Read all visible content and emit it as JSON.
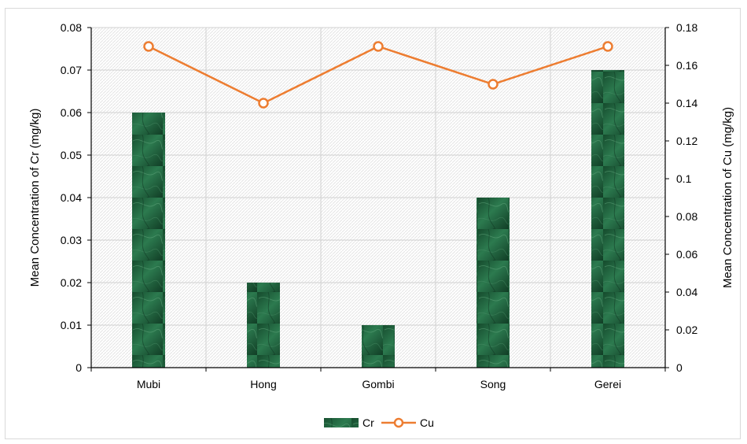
{
  "chart_data": {
    "type": "bar",
    "title": "",
    "categories": [
      "Mubi",
      "Hong",
      "Gombi",
      "Song",
      "Gerei"
    ],
    "series": [
      {
        "name": "Cr",
        "kind": "bar",
        "axis": "left",
        "color": "#1f5a3a",
        "values": [
          0.06,
          0.02,
          0.01,
          0.04,
          0.07
        ]
      },
      {
        "name": "Cu",
        "kind": "line",
        "axis": "right",
        "color": "#ed7d31",
        "values": [
          0.17,
          0.14,
          0.17,
          0.15,
          0.17
        ]
      }
    ],
    "y_left": {
      "label": "Mean Concentration of Cr (mg/kg)",
      "range": [
        0,
        0.08
      ],
      "ticks": [
        "0",
        "0.01",
        "0.02",
        "0.03",
        "0.04",
        "0.05",
        "0.06",
        "0.07",
        "0.08"
      ]
    },
    "y_right": {
      "label": "Mean Concentration of Cu (mg/kg)",
      "range": [
        0,
        0.18
      ],
      "ticks": [
        "0",
        "0.02",
        "0.04",
        "0.06",
        "0.08",
        "0.1",
        "0.12",
        "0.14",
        "0.16",
        "0.18"
      ]
    },
    "grid": true,
    "legend_position": "bottom"
  }
}
